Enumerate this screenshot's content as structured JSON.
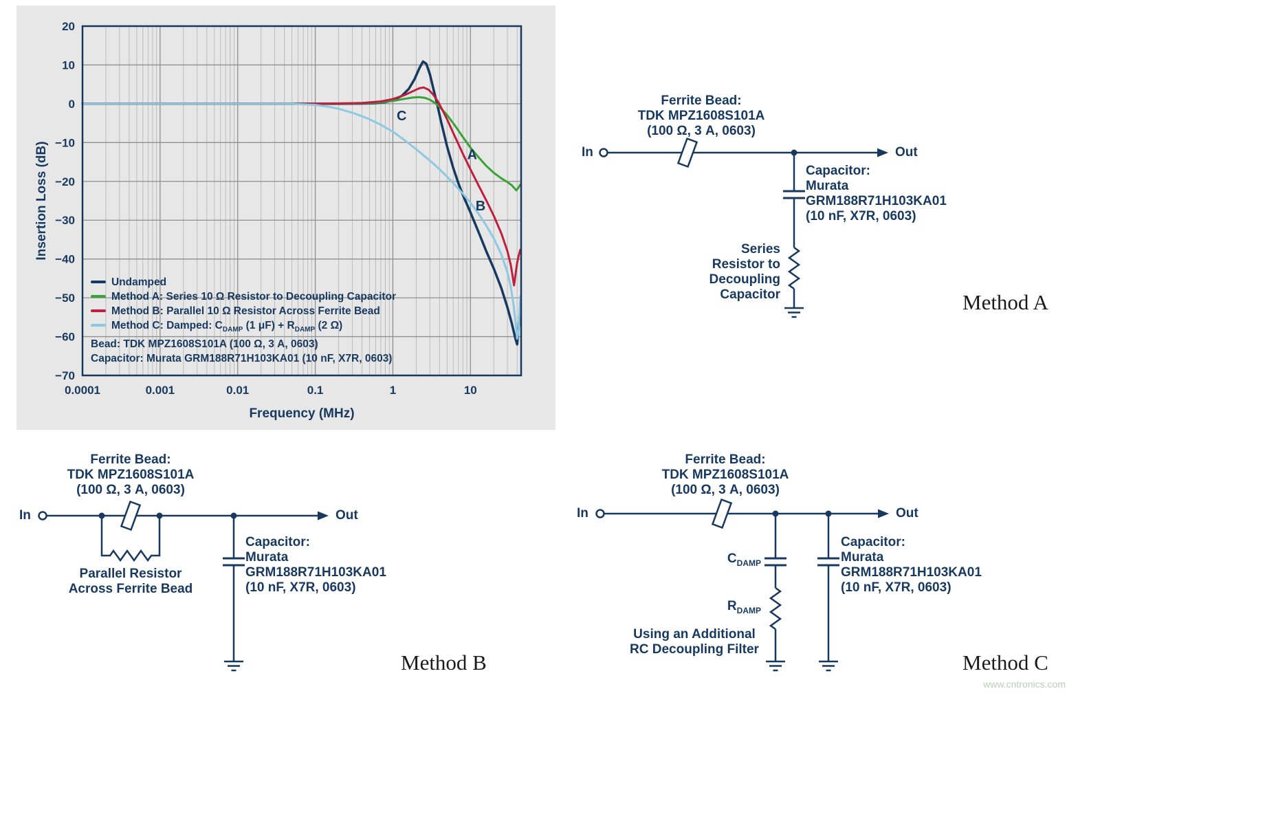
{
  "chart": {
    "ylabel": "Insertion Loss (dB)",
    "xlabel": "Frequency (MHz)",
    "legend": [
      {
        "label": "Undamped"
      },
      {
        "label": "Method A: Series 10 Ω Resistor to Decoupling Capacitor"
      },
      {
        "label": "Method B: Parallel 10 Ω Resistor Across Ferrite Bead"
      },
      {
        "parts": [
          "Method C: Damped: C",
          "DAMP",
          " (1 μF) + R",
          "DAMP",
          " (2 Ω)"
        ]
      }
    ],
    "notes": [
      "Bead: TDK MPZ1608S101A (100 Ω, 3 A, 0603)",
      "Capacitor: Murata GRM188R71H103KA01 (10 nF, X7R, 0603)"
    ]
  },
  "chart_data": {
    "type": "line",
    "x_scale": "log",
    "xlim": [
      0.0001,
      45
    ],
    "ylim": [
      -70,
      20
    ],
    "grid": true,
    "legend_position": "lower-left-inside",
    "x_ticks": [
      {
        "value": 0.0001,
        "label": "0.0001"
      },
      {
        "value": 0.001,
        "label": "0.001"
      },
      {
        "value": 0.01,
        "label": "0.01"
      },
      {
        "value": 0.1,
        "label": "0.1"
      },
      {
        "value": 1,
        "label": "1"
      },
      {
        "value": 10,
        "label": "10"
      }
    ],
    "y_ticks": [
      {
        "value": 20,
        "label": "20"
      },
      {
        "value": 10,
        "label": "10"
      },
      {
        "value": 0,
        "label": "0"
      },
      {
        "value": -10,
        "label": "−10"
      },
      {
        "value": -20,
        "label": "−20"
      },
      {
        "value": -30,
        "label": "−30"
      },
      {
        "value": -40,
        "label": "−40"
      },
      {
        "value": -50,
        "label": "−50"
      },
      {
        "value": -60,
        "label": "−60"
      },
      {
        "value": -70,
        "label": "−70"
      }
    ],
    "series": [
      {
        "name": "Undamped",
        "color": "#17395f",
        "width": 3.5,
        "points": [
          [
            0.0001,
            0
          ],
          [
            0.05,
            0
          ],
          [
            0.2,
            0
          ],
          [
            0.4,
            0.05
          ],
          [
            0.6,
            0.15
          ],
          [
            0.8,
            0.4
          ],
          [
            1,
            0.9
          ],
          [
            1.3,
            2.0
          ],
          [
            1.6,
            3.8
          ],
          [
            1.9,
            6.3
          ],
          [
            2.2,
            9.2
          ],
          [
            2.45,
            10.9
          ],
          [
            2.7,
            10.3
          ],
          [
            3.0,
            7.6
          ],
          [
            3.3,
            4.2
          ],
          [
            3.7,
            0.2
          ],
          [
            4.2,
            -4.8
          ],
          [
            5,
            -11
          ],
          [
            6,
            -16.5
          ],
          [
            7,
            -20.5
          ],
          [
            8,
            -23.5
          ],
          [
            10,
            -28
          ],
          [
            13,
            -33.5
          ],
          [
            16,
            -38
          ],
          [
            20,
            -42.5
          ],
          [
            25,
            -47.5
          ],
          [
            30,
            -52.5
          ],
          [
            34,
            -56.5
          ],
          [
            38,
            -60.5
          ],
          [
            40,
            -62
          ],
          [
            42,
            -57
          ],
          [
            44,
            -52.5
          ]
        ]
      },
      {
        "name": "Method A",
        "color": "#3aa335",
        "width": 3,
        "points": [
          [
            0.0001,
            0
          ],
          [
            0.1,
            0
          ],
          [
            0.4,
            0.1
          ],
          [
            0.7,
            0.35
          ],
          [
            1,
            0.7
          ],
          [
            1.4,
            1.25
          ],
          [
            1.8,
            1.6
          ],
          [
            2.2,
            1.7
          ],
          [
            2.6,
            1.5
          ],
          [
            3,
            1.05
          ],
          [
            3.5,
            0.2
          ],
          [
            4,
            -0.8
          ],
          [
            5,
            -2.9
          ],
          [
            6,
            -5
          ],
          [
            7,
            -6.9
          ],
          [
            8,
            -8.6
          ],
          [
            10,
            -11.3
          ],
          [
            13,
            -14
          ],
          [
            16,
            -16
          ],
          [
            20,
            -17.8
          ],
          [
            25,
            -19.2
          ],
          [
            30,
            -20.2
          ],
          [
            34,
            -21
          ],
          [
            37,
            -21.8
          ],
          [
            39,
            -22.3
          ],
          [
            41,
            -21.8
          ],
          [
            44,
            -20.8
          ]
        ]
      },
      {
        "name": "Method B",
        "color": "#bf1e3e",
        "width": 3,
        "points": [
          [
            0.0001,
            0
          ],
          [
            0.1,
            0
          ],
          [
            0.4,
            0.2
          ],
          [
            0.7,
            0.6
          ],
          [
            1,
            1.2
          ],
          [
            1.4,
            2.2
          ],
          [
            1.8,
            3.2
          ],
          [
            2.2,
            4.0
          ],
          [
            2.5,
            4.2
          ],
          [
            2.9,
            3.6
          ],
          [
            3.3,
            2.4
          ],
          [
            3.8,
            0.6
          ],
          [
            4.3,
            -1.4
          ],
          [
            5,
            -4
          ],
          [
            6,
            -7.5
          ],
          [
            7,
            -10.4
          ],
          [
            8,
            -12.9
          ],
          [
            10,
            -16.9
          ],
          [
            13,
            -21.4
          ],
          [
            16,
            -24.9
          ],
          [
            20,
            -28.9
          ],
          [
            25,
            -33.4
          ],
          [
            30,
            -38
          ],
          [
            33,
            -41.4
          ],
          [
            35,
            -44.5
          ],
          [
            36.5,
            -46.8
          ],
          [
            38,
            -44.2
          ],
          [
            40,
            -41
          ],
          [
            42,
            -39
          ],
          [
            44,
            -37.6
          ]
        ]
      },
      {
        "name": "Method C",
        "color": "#8ec9e2",
        "width": 3,
        "points": [
          [
            0.0001,
            0
          ],
          [
            0.05,
            0
          ],
          [
            0.1,
            -0.3
          ],
          [
            0.15,
            -0.8
          ],
          [
            0.2,
            -1.3
          ],
          [
            0.3,
            -2.3
          ],
          [
            0.4,
            -3.2
          ],
          [
            0.5,
            -4
          ],
          [
            0.7,
            -5.4
          ],
          [
            1,
            -7.2
          ],
          [
            1.4,
            -9.3
          ],
          [
            1.8,
            -11
          ],
          [
            2.2,
            -12.4
          ],
          [
            2.7,
            -13.9
          ],
          [
            3.2,
            -15.1
          ],
          [
            4,
            -16.9
          ],
          [
            5,
            -18.8
          ],
          [
            6,
            -20.4
          ],
          [
            7,
            -21.9
          ],
          [
            8,
            -23.2
          ],
          [
            10,
            -25.5
          ],
          [
            13,
            -28.6
          ],
          [
            16,
            -31.4
          ],
          [
            20,
            -34.7
          ],
          [
            25,
            -38.8
          ],
          [
            30,
            -43.5
          ],
          [
            33,
            -47
          ],
          [
            36,
            -52
          ],
          [
            38,
            -56
          ],
          [
            40,
            -60.5
          ],
          [
            41.5,
            -59
          ],
          [
            43,
            -53
          ],
          [
            44,
            -49.5
          ]
        ]
      }
    ],
    "curve_labels": [
      {
        "text": "C",
        "x": 1.3,
        "y": -4.3
      },
      {
        "text": "A",
        "x": 10.5,
        "y": -14.3
      },
      {
        "text": "B",
        "x": 13.5,
        "y": -27.5
      }
    ]
  },
  "circuits": {
    "in_label": "In",
    "out_label": "Out",
    "ferrite_bead_label": [
      "Ferrite Bead:",
      "TDK MPZ1608S101A",
      "(100 Ω, 3 A, 0603)"
    ],
    "capacitor_label": [
      "Capacitor:",
      "Murata",
      "GRM188R71H103KA01",
      "(10 nF, X7R, 0603)"
    ],
    "method_a": {
      "caption": "Method A",
      "resistor_label": [
        "Series",
        "Resistor to",
        "Decoupling",
        "Capacitor"
      ]
    },
    "method_b": {
      "caption": "Method B",
      "resistor_label": [
        "Parallel Resistor",
        "Across Ferrite Bead"
      ]
    },
    "method_c": {
      "caption": "Method C",
      "cdamp_base": "C",
      "cdamp_sub": "DAMP",
      "rdamp_base": "R",
      "rdamp_sub": "DAMP",
      "filter_label": [
        "Using an Additional",
        "RC Decoupling Filter"
      ]
    }
  },
  "watermark": "www.cntronics.com"
}
